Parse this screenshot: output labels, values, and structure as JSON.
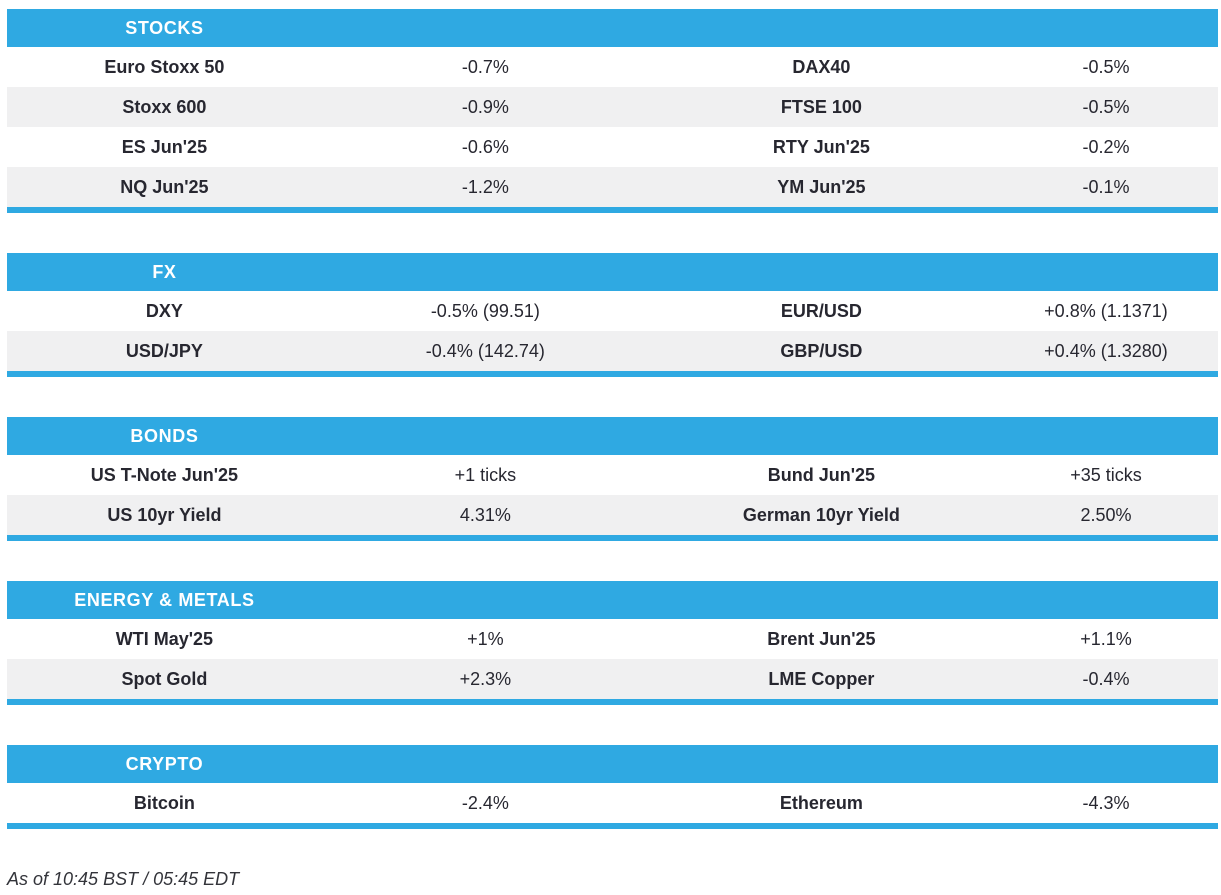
{
  "colors": {
    "accent_blue": "#2fa9e2",
    "stripe_grey": "#f0f0f1",
    "text_dark": "#272730",
    "header_text": "#ffffff"
  },
  "footer": {
    "timestamp": "As of 10:45 BST / 05:45 EDT"
  },
  "chart_data": {
    "type": "table",
    "layout": "four-column market wrap; col1/col3 instrument names (bold, centered), col2/col4 change values (regular, centered); each section headed by blue bar with title in first column and closed by thin blue rule; rows alternate white/light-grey starting white",
    "columns": [
      "instrument_left",
      "change_left",
      "instrument_right",
      "change_right"
    ],
    "sections": [
      {
        "title": "STOCKS",
        "rows": [
          [
            "Euro Stoxx 50",
            "-0.7%",
            "DAX40",
            "-0.5%"
          ],
          [
            "Stoxx 600",
            "-0.9%",
            "FTSE 100",
            "-0.5%"
          ],
          [
            "ES Jun'25",
            "-0.6%",
            "RTY Jun'25",
            "-0.2%"
          ],
          [
            "NQ Jun'25",
            "-1.2%",
            "YM Jun'25",
            "-0.1%"
          ]
        ]
      },
      {
        "title": "FX",
        "rows": [
          [
            "DXY",
            "-0.5% (99.51)",
            "EUR/USD",
            "+0.8% (1.1371)"
          ],
          [
            "USD/JPY",
            "-0.4% (142.74)",
            "GBP/USD",
            "+0.4% (1.3280)"
          ]
        ]
      },
      {
        "title": "BONDS",
        "rows": [
          [
            "US T-Note Jun'25",
            "+1 ticks",
            "Bund Jun'25",
            "+35 ticks"
          ],
          [
            "US 10yr Yield",
            "4.31%",
            "German 10yr Yield",
            "2.50%"
          ]
        ]
      },
      {
        "title": "ENERGY & METALS",
        "rows": [
          [
            "WTI May'25",
            "+1%",
            "Brent Jun'25",
            "+1.1%"
          ],
          [
            "Spot Gold",
            "+2.3%",
            "LME Copper",
            "-0.4%"
          ]
        ]
      },
      {
        "title": "CRYPTO",
        "rows": [
          [
            "Bitcoin",
            "-2.4%",
            "Ethereum",
            "-4.3%"
          ]
        ]
      }
    ]
  }
}
